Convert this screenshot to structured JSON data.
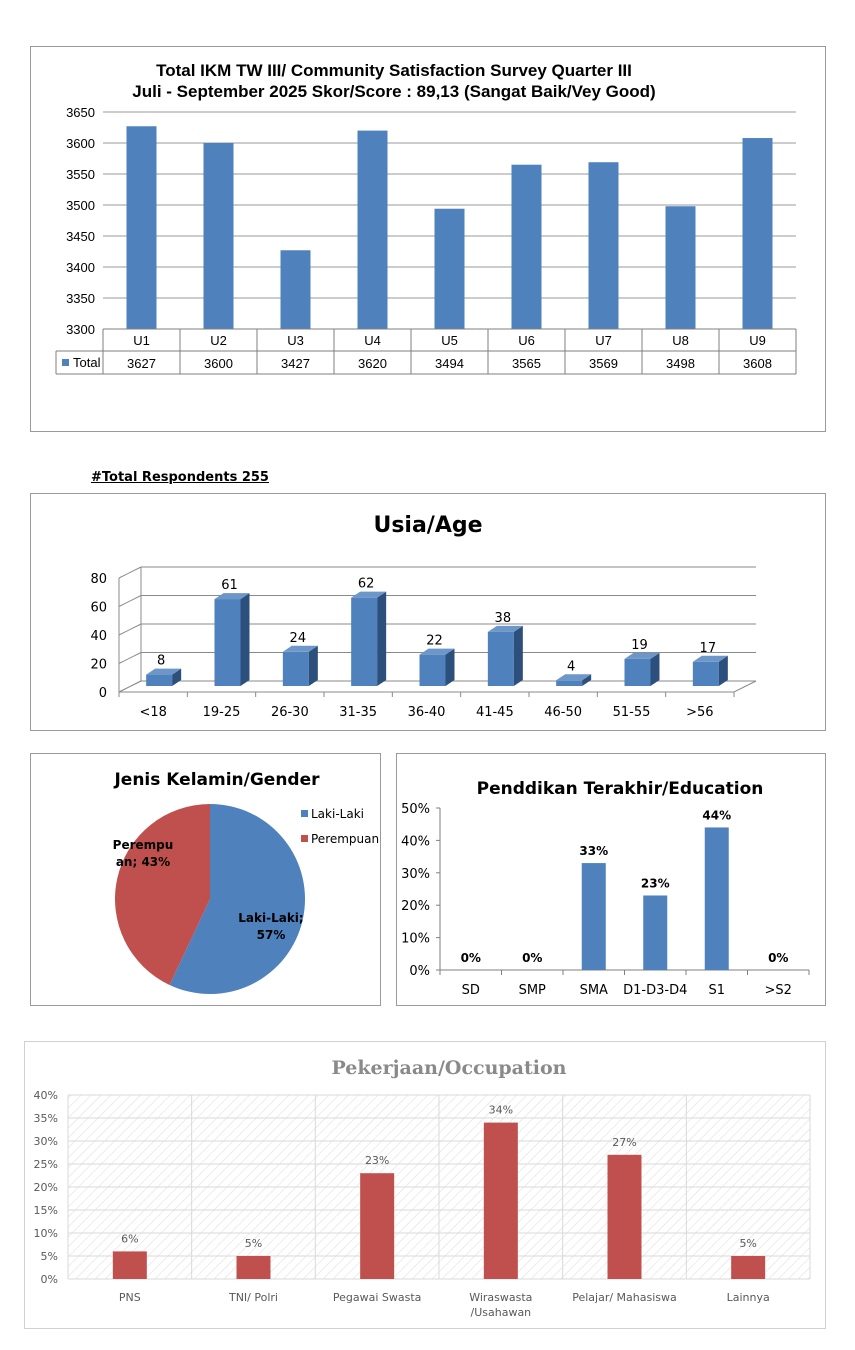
{
  "colors": {
    "blue": "#4f81bd",
    "blue_dark": "#2c4f7c",
    "blue_top": "#6d96c9",
    "red": "#c0504d"
  },
  "respondents_label": "#Total Respondents  255",
  "chart_data": [
    {
      "type": "bar",
      "title": "Total IKM TW III/ Community Satisfaction Survey Quarter III",
      "subtitle": "Juli - September 2025 Skor/Score : 89,13 (Sangat Baik/Vey Good)",
      "categories": [
        "U1",
        "U2",
        "U3",
        "U4",
        "U5",
        "U6",
        "U7",
        "U8",
        "U9"
      ],
      "series": [
        {
          "name": "Total",
          "values": [
            3627,
            3600,
            3427,
            3620,
            3494,
            3565,
            3569,
            3498,
            3608
          ]
        }
      ],
      "ylim": [
        3300,
        3650
      ],
      "yticks": [
        "3650",
        "3600",
        "3550",
        "3500",
        "3450",
        "3400",
        "3350",
        "3300"
      ],
      "grid": true,
      "legend": "data-table"
    },
    {
      "type": "bar",
      "title": "Usia/Age",
      "categories": [
        "<18",
        "19-25",
        "26-30",
        "31-35",
        "36-40",
        "41-45",
        "46-50",
        "51-55",
        ">56"
      ],
      "values": [
        8,
        61,
        24,
        62,
        22,
        38,
        4,
        19,
        17
      ],
      "ylim": [
        0,
        80
      ],
      "yticks": [
        "80",
        "60",
        "40",
        "20",
        "0"
      ],
      "grid": true
    },
    {
      "type": "pie",
      "title": "Jenis Kelamin/Gender",
      "labels": [
        "Laki-Laki",
        "Perempuan"
      ],
      "values": [
        57,
        43
      ],
      "data_labels": [
        "Laki-Laki;",
        "57%",
        "Perempu",
        "an; 43%"
      ],
      "legend": "right"
    },
    {
      "type": "bar",
      "title": "Penddikan Terakhir/Education",
      "categories": [
        "SD",
        "SMP",
        "SMA",
        "D1-D3-D4",
        "S1",
        ">S2"
      ],
      "values": [
        0,
        0,
        33,
        23,
        44,
        0
      ],
      "data_labels": [
        "0%",
        "0%",
        "33%",
        "23%",
        "44%",
        "0%"
      ],
      "ylim": [
        0,
        50
      ],
      "yticks": [
        "50%",
        "40%",
        "30%",
        "20%",
        "10%",
        "0%"
      ],
      "grid": false
    },
    {
      "type": "bar",
      "title": "Pekerjaan/Occupation",
      "categories": [
        "PNS",
        "TNI/ Polri",
        "Pegawai Swasta",
        "Wiraswasta /Usahawan",
        "Pelajar/ Mahasiswa",
        "Lainnya"
      ],
      "values": [
        6,
        5,
        23,
        34,
        27,
        5
      ],
      "data_labels": [
        "6%",
        "5%",
        "23%",
        "34%",
        "27%",
        "5%"
      ],
      "ylim": [
        0,
        40
      ],
      "yticks": [
        "40%",
        "35%",
        "30%",
        "25%",
        "20%",
        "15%",
        "10%",
        "5%",
        "0%"
      ],
      "grid": true
    }
  ]
}
